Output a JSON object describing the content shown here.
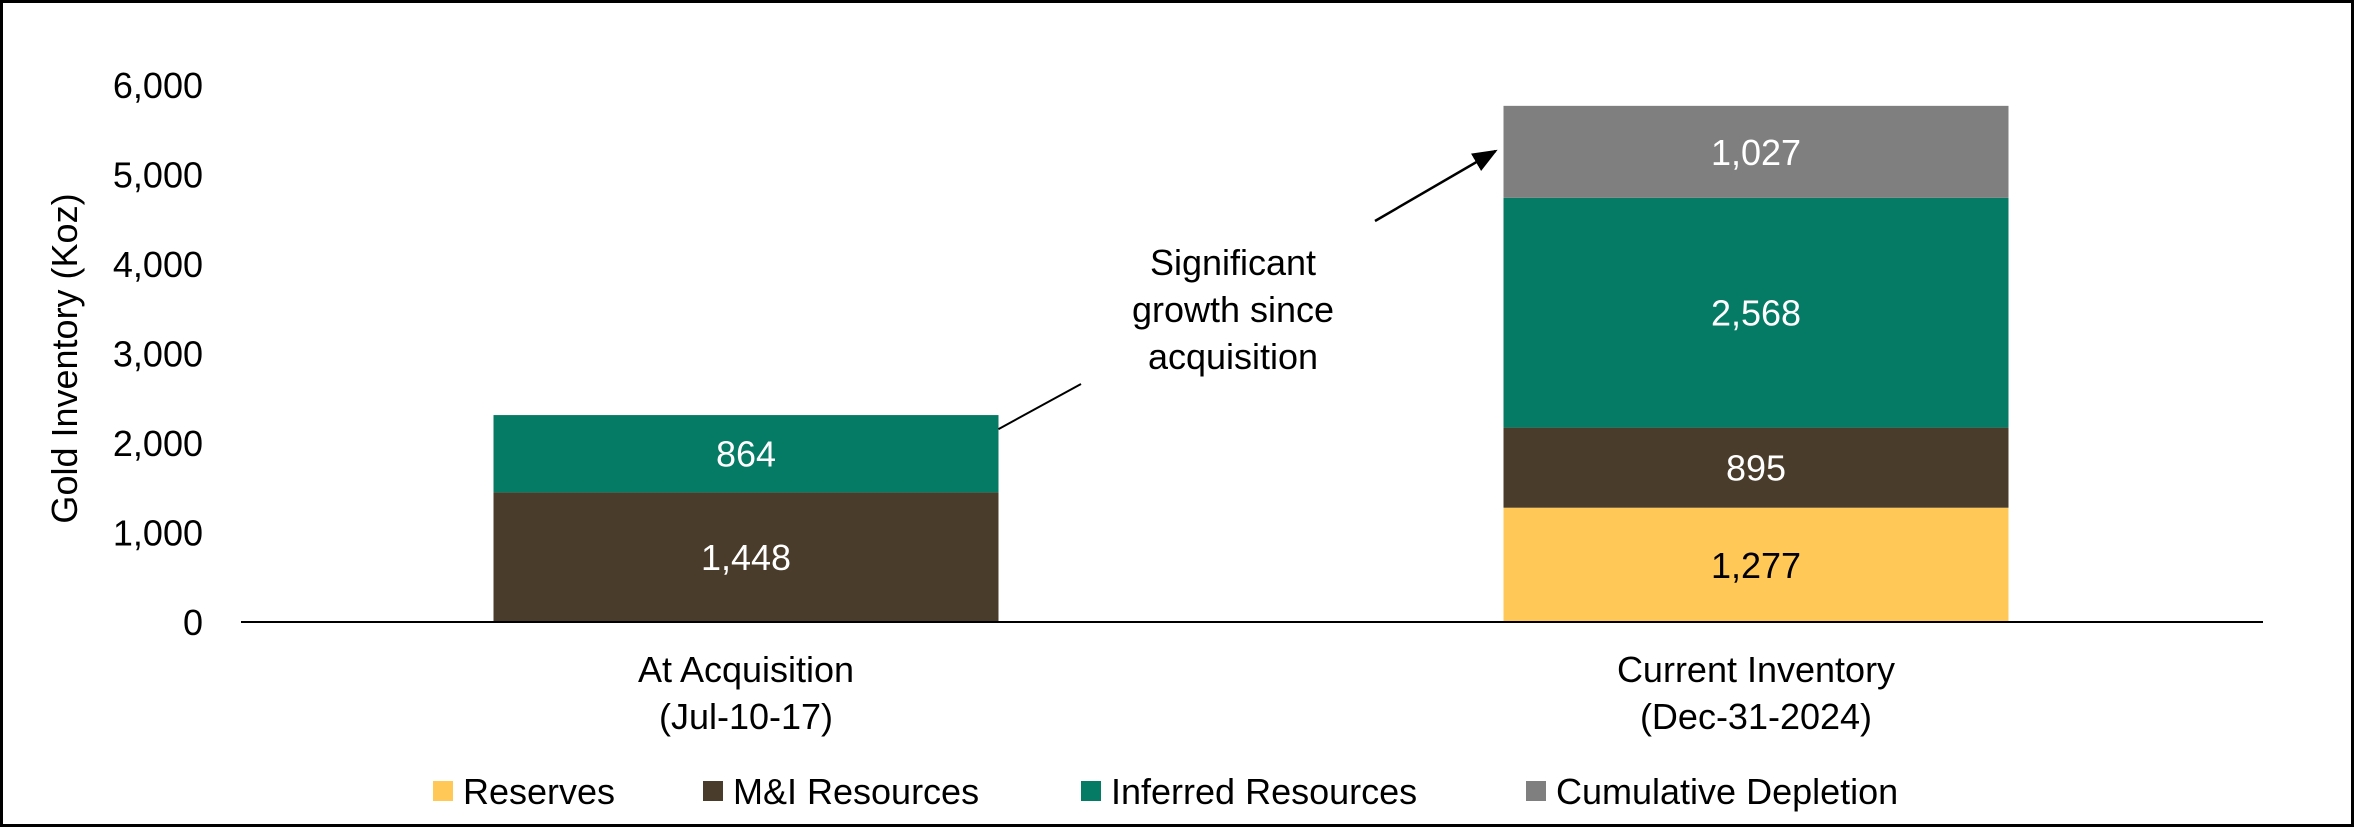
{
  "chart_data": {
    "type": "bar",
    "stacked": true,
    "ylabel": "Gold Inventory (Koz)",
    "ylim": [
      0,
      6000
    ],
    "yticks": [
      0,
      1000,
      2000,
      3000,
      4000,
      5000,
      6000
    ],
    "ytick_labels": [
      "0",
      "1,000",
      "2,000",
      "3,000",
      "4,000",
      "5,000",
      "6,000"
    ],
    "grid": false,
    "legend_position": "bottom",
    "categories": [
      [
        "At Acquisition",
        "(Jul-10-17)"
      ],
      [
        "Current Inventory",
        "(Dec-31-2024)"
      ]
    ],
    "series": [
      {
        "name": "Reserves",
        "values": [
          0,
          1277
        ],
        "labels": [
          "",
          "1,277"
        ],
        "color": "#FFC857",
        "label_color": "#000000"
      },
      {
        "name": "M&I Resources",
        "values": [
          1448,
          895
        ],
        "labels": [
          "1,448",
          "895"
        ],
        "color": "#4A3C2A",
        "label_color": "#FFFFFF"
      },
      {
        "name": "Inferred Resources",
        "values": [
          864,
          2568
        ],
        "labels": [
          "864",
          "2,568"
        ],
        "color": "#057B65",
        "label_color": "#FFFFFF"
      },
      {
        "name": "Cumulative Depletion",
        "values": [
          0,
          1027
        ],
        "labels": [
          "",
          "1,027"
        ],
        "color": "#7F7F7F",
        "label_color": "#FFFFFF"
      }
    ],
    "annotation": {
      "lines": [
        "Significant",
        "growth since",
        "acquisition"
      ],
      "arrow_from_category": 0,
      "arrow_to_category": 1
    }
  }
}
